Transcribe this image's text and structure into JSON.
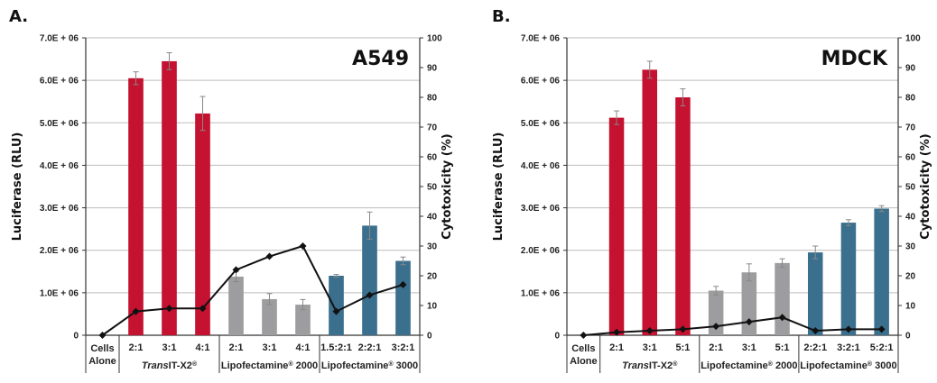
{
  "chart_data": [
    {
      "type": "bar",
      "panel_label": "A.",
      "cell_line": "A549",
      "ylabel": "Luciferase (RLU)",
      "y2label": "Cytotoxicity (%)",
      "ylim": [
        0,
        7000000
      ],
      "y2lim": [
        0,
        100
      ],
      "y_ticks": [
        "0",
        "1.0E + 06",
        "2.0E + 06",
        "3.0E + 06",
        "4.0E + 06",
        "5.0E + 06",
        "6.0E + 06",
        "7.0E + 06"
      ],
      "y2_ticks": [
        "0",
        "10",
        "20",
        "30",
        "40",
        "50",
        "60",
        "70",
        "80",
        "90",
        "100"
      ],
      "categories": [
        "Cells Alone",
        "2:1",
        "3:1",
        "4:1",
        "2:1",
        "3:1",
        "4:1",
        "1.5:2:1",
        "2:2:1",
        "3:2:1"
      ],
      "groups": [
        {
          "label": "Cells Alone",
          "reagent": "",
          "mark": ""
        },
        {
          "label": "",
          "reagent": "TransIT-X2",
          "mark": "®",
          "italic": "Trans",
          "rest": "IT-X2"
        },
        {
          "label": "",
          "reagent": "Lipofectamine",
          "mark": "®",
          "suffix": " 2000"
        },
        {
          "label": "",
          "reagent": "Lipofectamine",
          "mark": "®",
          "suffix": " 3000"
        }
      ],
      "group_sizes": [
        1,
        3,
        3,
        3
      ],
      "colors": [
        "#ffffff",
        "#c41230",
        "#c41230",
        "#c41230",
        "#9d9d9f",
        "#9d9d9f",
        "#9d9d9f",
        "#3b6f8e",
        "#3b6f8e",
        "#3b6f8e"
      ],
      "series": [
        {
          "name": "Luciferase (RLU)",
          "values": [
            0,
            6050000,
            6450000,
            5220000,
            1380000,
            850000,
            720000,
            1400000,
            2580000,
            1750000
          ],
          "errors": [
            0,
            150000,
            200000,
            400000,
            120000,
            130000,
            120000,
            30000,
            320000,
            90000
          ]
        },
        {
          "name": "Cytotoxicity (%)",
          "values": [
            0,
            8,
            9,
            9,
            22,
            26.5,
            30,
            8,
            13.5,
            17
          ]
        }
      ]
    },
    {
      "type": "bar",
      "panel_label": "B.",
      "cell_line": "MDCK",
      "ylabel": "Luciferase (RLU)",
      "y2label": "Cytotoxicity (%)",
      "ylim": [
        0,
        7000000
      ],
      "y2lim": [
        0,
        100
      ],
      "y_ticks": [
        "0",
        "1.0E + 06",
        "2.0E + 06",
        "3.0E + 06",
        "4.0E + 06",
        "5.0E + 06",
        "6.0E + 06",
        "7.0E + 06"
      ],
      "y2_ticks": [
        "0",
        "10",
        "20",
        "30",
        "40",
        "50",
        "60",
        "70",
        "80",
        "90",
        "100"
      ],
      "categories": [
        "Cells Alone",
        "2:1",
        "3:1",
        "5:1",
        "2:1",
        "3:1",
        "5:1",
        "2:2:1",
        "3:2:1",
        "5:2:1"
      ],
      "groups": [
        {
          "label": "Cells Alone",
          "reagent": "",
          "mark": ""
        },
        {
          "label": "",
          "reagent": "TransIT-X2",
          "mark": "®",
          "italic": "Trans",
          "rest": "IT-X2"
        },
        {
          "label": "",
          "reagent": "Lipofectamine",
          "mark": "®",
          "suffix": " 2000"
        },
        {
          "label": "",
          "reagent": "Lipofectamine",
          "mark": "®",
          "suffix": " 3000"
        }
      ],
      "group_sizes": [
        1,
        3,
        3,
        3
      ],
      "colors": [
        "#ffffff",
        "#c41230",
        "#c41230",
        "#c41230",
        "#9d9d9f",
        "#9d9d9f",
        "#9d9d9f",
        "#3b6f8e",
        "#3b6f8e",
        "#3b6f8e"
      ],
      "series": [
        {
          "name": "Luciferase (RLU)",
          "values": [
            0,
            5120000,
            6250000,
            5600000,
            1050000,
            1480000,
            1700000,
            1950000,
            2650000,
            2980000
          ],
          "errors": [
            0,
            160000,
            200000,
            200000,
            100000,
            200000,
            100000,
            150000,
            70000,
            70000
          ]
        },
        {
          "name": "Cytotoxicity (%)",
          "values": [
            0,
            1,
            1.5,
            2,
            3,
            4.5,
            6,
            1.5,
            2,
            2
          ]
        }
      ]
    }
  ]
}
